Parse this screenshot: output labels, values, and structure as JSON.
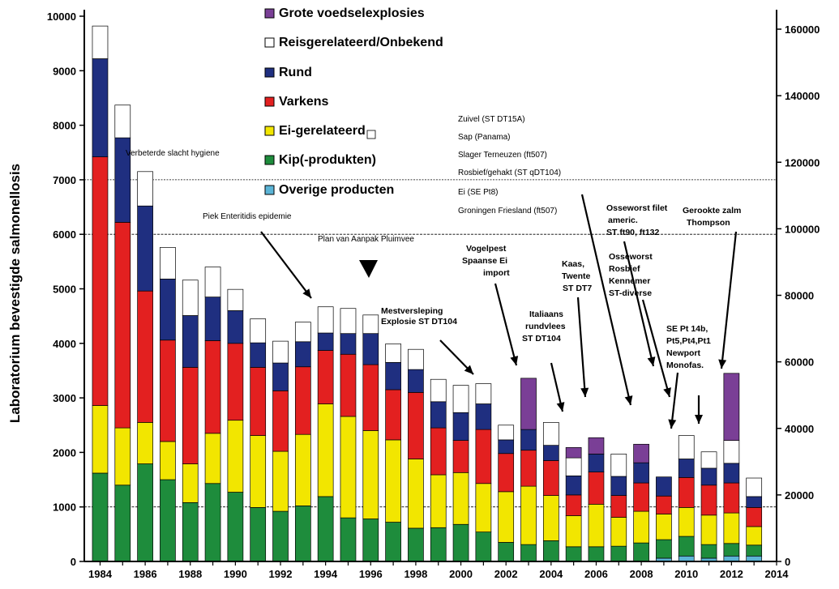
{
  "chart_data": {
    "type": "bar",
    "stacked": true,
    "ylabel": "Laboratorium bevestigde salmonellosis",
    "ylim": [
      0,
      10000
    ],
    "yticks": [
      0,
      1000,
      2000,
      3000,
      4000,
      5000,
      6000,
      7000,
      8000,
      9000,
      10000
    ],
    "y2lim": [
      0,
      160000
    ],
    "y2ticks": [
      0,
      20000,
      40000,
      60000,
      80000,
      100000,
      120000,
      140000,
      160000
    ],
    "xlim": [
      1983.3,
      2014
    ],
    "xticks": [
      "1984",
      "1986",
      "1988",
      "1990",
      "1992",
      "1994",
      "1996",
      "1998",
      "2000",
      "2002",
      "2004",
      "2006",
      "2008",
      "2010",
      "2012",
      "2014"
    ],
    "legend_position": "top-center",
    "categories": [
      1984,
      1985,
      1986,
      1987,
      1988,
      1989,
      1990,
      1991,
      1992,
      1993,
      1994,
      1995,
      1996,
      1997,
      1998,
      1999,
      2000,
      2001,
      2002,
      2003,
      2004,
      2005,
      2006,
      2007,
      2008,
      2009,
      2010,
      2011,
      2012,
      2013
    ],
    "series": [
      {
        "name": "Overige producten",
        "color": "#5bb4d6",
        "values": [
          0,
          0,
          0,
          0,
          0,
          0,
          0,
          0,
          0,
          0,
          0,
          0,
          0,
          0,
          0,
          0,
          0,
          0,
          0,
          0,
          0,
          0,
          0,
          0,
          0,
          60,
          100,
          60,
          100,
          100
        ]
      },
      {
        "name": "Kip(-produkten)",
        "color": "#1e8c3c",
        "values": [
          1620,
          1400,
          1790,
          1500,
          1080,
          1430,
          1270,
          990,
          920,
          1020,
          1190,
          800,
          780,
          720,
          610,
          620,
          680,
          540,
          350,
          310,
          380,
          270,
          270,
          280,
          340,
          340,
          360,
          250,
          230,
          200
        ]
      },
      {
        "name": "Ei-gerelateerd",
        "color": "#f2e600",
        "values": [
          1240,
          1050,
          760,
          700,
          710,
          920,
          1320,
          1320,
          1100,
          1310,
          1700,
          1860,
          1620,
          1510,
          1270,
          970,
          950,
          890,
          930,
          1070,
          830,
          570,
          780,
          530,
          580,
          470,
          530,
          540,
          560,
          340
        ]
      },
      {
        "name": "Varkens",
        "color": "#e32020",
        "values": [
          4560,
          3770,
          2410,
          1860,
          1770,
          1700,
          1410,
          1250,
          1110,
          1240,
          980,
          1140,
          1210,
          920,
          1220,
          860,
          590,
          990,
          700,
          660,
          640,
          380,
          590,
          400,
          520,
          330,
          550,
          550,
          550,
          350
        ]
      },
      {
        "name": "Rund",
        "color": "#1f2f80",
        "values": [
          1800,
          1550,
          1560,
          1120,
          950,
          800,
          600,
          450,
          510,
          460,
          320,
          380,
          570,
          500,
          420,
          480,
          510,
          470,
          250,
          380,
          280,
          350,
          330,
          350,
          370,
          350,
          340,
          310,
          360,
          200
        ]
      },
      {
        "name": "Reisgerelateerd/Onbekend",
        "color": "#ffffff",
        "values": [
          600,
          600,
          630,
          580,
          650,
          550,
          390,
          440,
          400,
          360,
          480,
          460,
          340,
          340,
          370,
          410,
          500,
          370,
          270,
          0,
          420,
          330,
          0,
          410,
          0,
          0,
          430,
          300,
          420,
          340
        ]
      },
      {
        "name": "Grote voedselexplosies",
        "color": "#7a3f96",
        "values": [
          0,
          0,
          0,
          0,
          0,
          0,
          0,
          0,
          0,
          0,
          0,
          0,
          0,
          0,
          0,
          0,
          0,
          0,
          0,
          940,
          0,
          190,
          300,
          0,
          340,
          0,
          0,
          0,
          1230,
          0
        ]
      }
    ],
    "ref_lines": [
      {
        "value": 7000,
        "label": "Verbeterde slacht hygiene"
      },
      {
        "value": 6000,
        "label": "Plan van Aanpak Pluimvee"
      },
      {
        "value": 1000,
        "label": ""
      }
    ],
    "annotations": [
      {
        "text": "Piek Enteritidis epidemie"
      },
      {
        "text": "Mestversleping"
      },
      {
        "text": "Explosie ST DT104"
      },
      {
        "text": "Vogelpest"
      },
      {
        "text": "Spaanse Ei"
      },
      {
        "text": "import"
      },
      {
        "text": "Italiaans"
      },
      {
        "text": "rundvlees"
      },
      {
        "text": "ST DT104"
      },
      {
        "text": "Kaas,"
      },
      {
        "text": "Twente"
      },
      {
        "text": "ST DT7"
      },
      {
        "text": "Zuivel (ST DT15A)"
      },
      {
        "text": "Sap (Panama)"
      },
      {
        "text": "Slager Terneuzen (ft507)"
      },
      {
        "text": "Rosbief/gehakt (ST qDT104)"
      },
      {
        "text": "Ei (SE Pt8)"
      },
      {
        "text": "Groningen Friesland (ft507)"
      },
      {
        "text": "Osseworst filet"
      },
      {
        "text": "americ."
      },
      {
        "text": "ST ft90, ft132"
      },
      {
        "text": "Osseworst"
      },
      {
        "text": "Rosbief"
      },
      {
        "text": "Kennemer"
      },
      {
        "text": "ST-diverse"
      },
      {
        "text": "SE Pt 14b,"
      },
      {
        "text": "Pt5,Pt4,Pt1"
      },
      {
        "text": "Newport"
      },
      {
        "text": "Monofas."
      },
      {
        "text": "Gerookte zalm"
      },
      {
        "text": "Thompson"
      }
    ]
  }
}
